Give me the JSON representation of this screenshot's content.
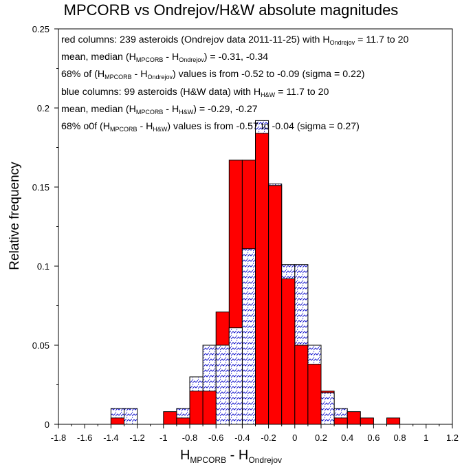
{
  "chart_data": {
    "type": "bar",
    "title": "MPCORB vs Ondrejov/H&W absolute magnitudes",
    "ylabel": "Relative frequency",
    "xlabel": {
      "main": "H",
      "sub1": "MPCORB",
      "mid": " - H",
      "sub2": "Ondrejov"
    },
    "xlim": [
      -1.8,
      1.2
    ],
    "ylim": [
      0,
      0.25
    ],
    "bin_width": 0.1,
    "xticks": [
      "-1.8",
      "-1.6",
      "-1.4",
      "-1.2",
      "-1",
      "-0.8",
      "-0.6",
      "-0.4",
      "-0.2",
      "0",
      "0.2",
      "0.4",
      "0.6",
      "0.8",
      "1",
      "1.2"
    ],
    "yticks": [
      "0",
      "0.05",
      "0.1",
      "0.15",
      "0.2",
      "0.25"
    ],
    "grid": false,
    "series": [
      {
        "fill": "solid",
        "color": "#ff0000",
        "bins": [
          {
            "x0": -1.4,
            "x1": -1.3,
            "v": 0.004
          },
          {
            "x0": -1.0,
            "x1": -0.9,
            "v": 0.008
          },
          {
            "x0": -0.9,
            "x1": -0.8,
            "v": 0.004
          },
          {
            "x0": -0.8,
            "x1": -0.7,
            "v": 0.021
          },
          {
            "x0": -0.7,
            "x1": -0.6,
            "v": 0.021
          },
          {
            "x0": -0.6,
            "x1": -0.5,
            "v": 0.071
          },
          {
            "x0": -0.5,
            "x1": -0.4,
            "v": 0.167
          },
          {
            "x0": -0.4,
            "x1": -0.3,
            "v": 0.167
          },
          {
            "x0": -0.3,
            "x1": -0.2,
            "v": 0.184
          },
          {
            "x0": -0.2,
            "x1": -0.1,
            "v": 0.151
          },
          {
            "x0": -0.1,
            "x1": 0.0,
            "v": 0.092
          },
          {
            "x0": 0.0,
            "x1": 0.1,
            "v": 0.05
          },
          {
            "x0": 0.1,
            "x1": 0.2,
            "v": 0.038
          },
          {
            "x0": 0.2,
            "x1": 0.3,
            "v": 0.021
          },
          {
            "x0": 0.3,
            "x1": 0.4,
            "v": 0.004
          },
          {
            "x0": 0.4,
            "x1": 0.5,
            "v": 0.008
          },
          {
            "x0": 0.5,
            "x1": 0.6,
            "v": 0.004
          },
          {
            "x0": 0.7,
            "x1": 0.8,
            "v": 0.004
          }
        ]
      },
      {
        "fill": "hatched",
        "color": "#1f1fd0",
        "bins": [
          {
            "x0": -1.4,
            "x1": -1.3,
            "v": 0.01
          },
          {
            "x0": -1.3,
            "x1": -1.2,
            "v": 0.01
          },
          {
            "x0": -0.9,
            "x1": -0.8,
            "v": 0.01
          },
          {
            "x0": -0.8,
            "x1": -0.7,
            "v": 0.03
          },
          {
            "x0": -0.7,
            "x1": -0.6,
            "v": 0.05
          },
          {
            "x0": -0.6,
            "x1": -0.5,
            "v": 0.05
          },
          {
            "x0": -0.5,
            "x1": -0.4,
            "v": 0.061
          },
          {
            "x0": -0.4,
            "x1": -0.3,
            "v": 0.111
          },
          {
            "x0": -0.3,
            "x1": -0.2,
            "v": 0.192
          },
          {
            "x0": -0.2,
            "x1": -0.1,
            "v": 0.152
          },
          {
            "x0": -0.1,
            "x1": 0.0,
            "v": 0.101
          },
          {
            "x0": 0.0,
            "x1": 0.1,
            "v": 0.101
          },
          {
            "x0": 0.1,
            "x1": 0.2,
            "v": 0.05
          },
          {
            "x0": 0.2,
            "x1": 0.3,
            "v": 0.02
          },
          {
            "x0": 0.3,
            "x1": 0.4,
            "v": 0.01
          }
        ]
      }
    ],
    "annotations": [
      {
        "parts": [
          [
            "t",
            "red columns: 239 asteroids (Ondrejov data 2011-11-25) with H"
          ],
          [
            "s",
            "Ondrejov"
          ],
          [
            "t",
            " = 11.7 to 20"
          ]
        ]
      },
      {
        "parts": [
          [
            "t",
            "mean, median (H"
          ],
          [
            "s",
            "MPCORB"
          ],
          [
            "t",
            " - H"
          ],
          [
            "s",
            "Ondrejov"
          ],
          [
            "t",
            ") = -0.31, -0.34"
          ]
        ]
      },
      {
        "parts": [
          [
            "t",
            "68% of (H"
          ],
          [
            "s",
            "MPCORB"
          ],
          [
            "t",
            " - H"
          ],
          [
            "s",
            "Ondrejov"
          ],
          [
            "t",
            ") values is from -0.52 to -0.09 (sigma = 0.22)"
          ]
        ]
      },
      {
        "parts": [
          [
            "t",
            "blue columns: 99 asteroids (H&W data) with H"
          ],
          [
            "s",
            "H&W"
          ],
          [
            "t",
            " = 11.7 to 20"
          ]
        ]
      },
      {
        "parts": [
          [
            "t",
            "mean, median (H"
          ],
          [
            "s",
            "MPCORB"
          ],
          [
            "t",
            " - H"
          ],
          [
            "s",
            "H&W"
          ],
          [
            "t",
            ") = -0.29, -0.27"
          ]
        ]
      },
      {
        "parts": [
          [
            "t",
            "68% o0f (H"
          ],
          [
            "s",
            "MPCORB"
          ],
          [
            "t",
            " - H"
          ],
          [
            "s",
            "H&W"
          ],
          [
            "t",
            ") values is from -0.57 to -0.04 (sigma = 0.27)"
          ]
        ]
      }
    ]
  }
}
